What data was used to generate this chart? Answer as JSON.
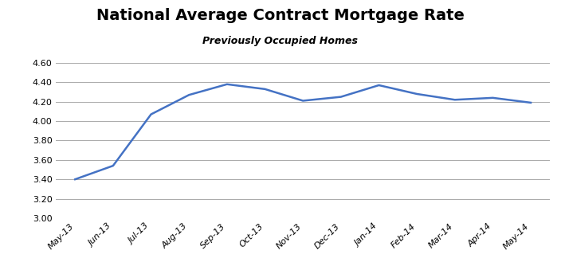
{
  "title": "National Average Contract Mortgage Rate",
  "subtitle": "Previously Occupied Homes",
  "x_labels": [
    "May-13",
    "Jun-13",
    "Jul-13",
    "Aug-13",
    "Sep-13",
    "Oct-13",
    "Nov-13",
    "Dec-13",
    "Jan-14",
    "Feb-14",
    "Mar-14",
    "Apr-14",
    "May-14"
  ],
  "y_values": [
    3.4,
    3.54,
    4.07,
    4.27,
    4.38,
    4.33,
    4.21,
    4.25,
    4.37,
    4.28,
    4.22,
    4.24,
    4.19
  ],
  "ylim": [
    3.0,
    4.7
  ],
  "yticks": [
    3.0,
    3.2,
    3.4,
    3.6,
    3.8,
    4.0,
    4.2,
    4.4,
    4.6
  ],
  "line_color": "#4472C4",
  "line_width": 1.8,
  "background_color": "#FFFFFF",
  "plot_bg_color": "#FFFFFF",
  "grid_color": "#AAAAAA",
  "title_fontsize": 14,
  "subtitle_fontsize": 9,
  "tick_fontsize": 8
}
